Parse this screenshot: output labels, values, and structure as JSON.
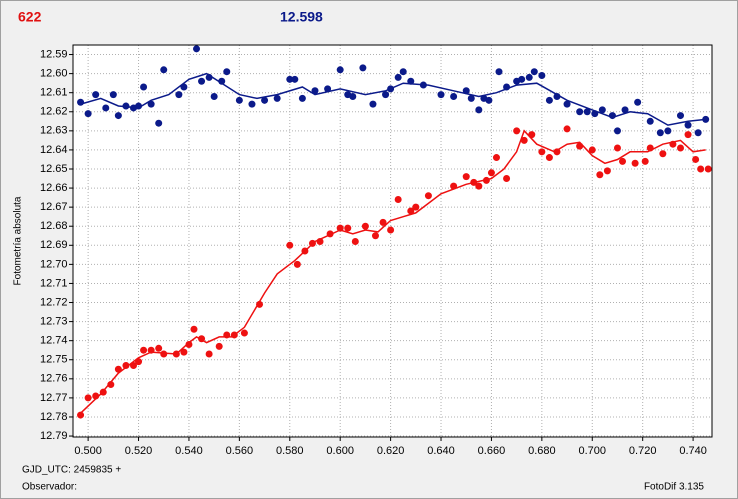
{
  "chart_data": {
    "type": "scatter",
    "label_left": "622",
    "label_right": "12.598",
    "ylabel": "Fotometría absoluta",
    "footer": [
      "GJD_UTC: 2459835 +",
      "Observador:",
      "FotoDif 3.135"
    ],
    "y_inverted": true,
    "grid": true,
    "xlim": [
      0.494,
      0.7475
    ],
    "ylim": [
      12.585,
      12.7905
    ],
    "xticks": [
      {
        "value": 0.5,
        "label": "0.500"
      },
      {
        "value": 0.52,
        "label": "0.520"
      },
      {
        "value": 0.54,
        "label": "0.540"
      },
      {
        "value": 0.56,
        "label": "0.560"
      },
      {
        "value": 0.58,
        "label": "0.580"
      },
      {
        "value": 0.6,
        "label": "0.600"
      },
      {
        "value": 0.62,
        "label": "0.620"
      },
      {
        "value": 0.64,
        "label": "0.640"
      },
      {
        "value": 0.66,
        "label": "0.660"
      },
      {
        "value": 0.68,
        "label": "0.680"
      },
      {
        "value": 0.7,
        "label": "0.700"
      },
      {
        "value": 0.72,
        "label": "0.720"
      },
      {
        "value": 0.74,
        "label": "0.740"
      }
    ],
    "yticks": [
      12.59,
      {
        "value": 12.6,
        "label": "12.60"
      },
      12.61,
      12.62,
      12.63,
      12.64,
      12.65,
      12.66,
      12.67,
      12.68,
      12.69,
      {
        "value": 12.7,
        "label": "12.70"
      },
      12.71,
      12.72,
      12.73,
      12.74,
      12.75,
      12.76,
      12.77,
      12.78,
      12.79
    ],
    "series": [
      {
        "style": "markers",
        "color": "#0b1a8a",
        "x": [
          0.497,
          0.5,
          0.503,
          0.507,
          0.51,
          0.512,
          0.515,
          0.518,
          0.52,
          0.522,
          0.525,
          0.528,
          0.53,
          0.536,
          0.538,
          0.543,
          0.545,
          0.548,
          0.55,
          0.553,
          0.555,
          0.56,
          0.565,
          0.57,
          0.575,
          0.58,
          0.582,
          0.585,
          0.59,
          0.595,
          0.6,
          0.603,
          0.605,
          0.609,
          0.613,
          0.618,
          0.62,
          0.623,
          0.625,
          0.628,
          0.633,
          0.64,
          0.645,
          0.65,
          0.652,
          0.655,
          0.657,
          0.659,
          0.663,
          0.666,
          0.67,
          0.672,
          0.675,
          0.677,
          0.68,
          0.683,
          0.686,
          0.69,
          0.695,
          0.698,
          0.701,
          0.704,
          0.708,
          0.71,
          0.713,
          0.718,
          0.723,
          0.727,
          0.73,
          0.735,
          0.738,
          0.742,
          0.745
        ],
        "values": [
          12.615,
          12.621,
          12.611,
          12.618,
          12.611,
          12.622,
          12.617,
          12.618,
          12.617,
          12.607,
          12.616,
          12.626,
          12.598,
          12.611,
          12.607,
          12.587,
          12.604,
          12.602,
          12.612,
          12.604,
          12.599,
          12.614,
          12.616,
          12.614,
          12.613,
          12.603,
          12.603,
          12.613,
          12.609,
          12.608,
          12.598,
          12.611,
          12.612,
          12.597,
          12.616,
          12.611,
          12.608,
          12.602,
          12.599,
          12.604,
          12.606,
          12.611,
          12.612,
          12.609,
          12.613,
          12.619,
          12.613,
          12.614,
          12.599,
          12.607,
          12.604,
          12.603,
          12.602,
          12.599,
          12.601,
          12.614,
          12.612,
          12.616,
          12.62,
          12.62,
          12.621,
          12.619,
          12.622,
          12.63,
          12.619,
          12.615,
          12.625,
          12.631,
          12.63,
          12.622,
          12.627,
          12.631,
          12.624
        ]
      },
      {
        "style": "line",
        "color": "#0b1a8a",
        "x": [
          0.497,
          0.505,
          0.512,
          0.52,
          0.525,
          0.532,
          0.54,
          0.547,
          0.553,
          0.56,
          0.567,
          0.575,
          0.585,
          0.59,
          0.6,
          0.61,
          0.618,
          0.625,
          0.635,
          0.645,
          0.655,
          0.662,
          0.67,
          0.678,
          0.69,
          0.7,
          0.708,
          0.715,
          0.722,
          0.73,
          0.738,
          0.745
        ],
        "values": [
          12.616,
          12.613,
          12.617,
          12.618,
          12.614,
          12.611,
          12.603,
          12.6,
          12.605,
          12.611,
          12.613,
          12.611,
          12.607,
          12.611,
          12.608,
          12.611,
          12.609,
          12.605,
          12.606,
          12.609,
          12.612,
          12.61,
          12.606,
          12.605,
          12.614,
          12.619,
          12.623,
          12.62,
          12.621,
          12.627,
          12.625,
          12.624
        ]
      },
      {
        "style": "markers",
        "color": "#ee1111",
        "x": [
          0.497,
          0.5,
          0.503,
          0.506,
          0.509,
          0.512,
          0.515,
          0.518,
          0.52,
          0.522,
          0.525,
          0.528,
          0.53,
          0.535,
          0.538,
          0.54,
          0.542,
          0.545,
          0.548,
          0.552,
          0.555,
          0.558,
          0.562,
          0.568,
          0.58,
          0.583,
          0.586,
          0.589,
          0.592,
          0.596,
          0.6,
          0.603,
          0.606,
          0.61,
          0.614,
          0.617,
          0.62,
          0.623,
          0.628,
          0.63,
          0.635,
          0.645,
          0.65,
          0.653,
          0.655,
          0.658,
          0.66,
          0.662,
          0.666,
          0.67,
          0.673,
          0.676,
          0.68,
          0.683,
          0.686,
          0.69,
          0.695,
          0.7,
          0.703,
          0.706,
          0.71,
          0.712,
          0.717,
          0.721,
          0.723,
          0.728,
          0.732,
          0.735,
          0.738,
          0.741,
          0.743,
          0.746
        ],
        "values": [
          12.779,
          12.77,
          12.769,
          12.767,
          12.763,
          12.755,
          12.753,
          12.753,
          12.751,
          12.745,
          12.745,
          12.744,
          12.747,
          12.747,
          12.746,
          12.742,
          12.734,
          12.739,
          12.747,
          12.743,
          12.737,
          12.737,
          12.736,
          12.721,
          12.69,
          12.7,
          12.693,
          12.689,
          12.688,
          12.684,
          12.681,
          12.681,
          12.688,
          12.68,
          12.685,
          12.678,
          12.682,
          12.666,
          12.672,
          12.67,
          12.664,
          12.659,
          12.654,
          12.657,
          12.659,
          12.656,
          12.652,
          12.644,
          12.655,
          12.63,
          12.635,
          12.632,
          12.641,
          12.644,
          12.641,
          12.629,
          12.638,
          12.64,
          12.653,
          12.651,
          12.639,
          12.646,
          12.647,
          12.646,
          12.639,
          12.642,
          12.637,
          12.639,
          12.632,
          12.645,
          12.65,
          12.65
        ]
      },
      {
        "style": "line",
        "color": "#ee1111",
        "x": [
          0.497,
          0.505,
          0.512,
          0.52,
          0.525,
          0.535,
          0.54,
          0.543,
          0.547,
          0.552,
          0.557,
          0.562,
          0.57,
          0.575,
          0.582,
          0.59,
          0.595,
          0.6,
          0.605,
          0.61,
          0.615,
          0.62,
          0.625,
          0.63,
          0.64,
          0.65,
          0.66,
          0.665,
          0.67,
          0.673,
          0.678,
          0.685,
          0.69,
          0.695,
          0.7,
          0.705,
          0.71,
          0.715,
          0.722,
          0.728,
          0.735,
          0.74,
          0.745
        ],
        "values": [
          12.778,
          12.768,
          12.757,
          12.749,
          12.746,
          12.747,
          12.741,
          12.738,
          12.741,
          12.738,
          12.738,
          12.733,
          12.715,
          12.705,
          12.698,
          12.688,
          12.685,
          12.682,
          12.684,
          12.682,
          12.683,
          12.677,
          12.675,
          12.673,
          12.663,
          12.658,
          12.655,
          12.65,
          12.641,
          12.63,
          12.637,
          12.641,
          12.637,
          12.636,
          12.643,
          12.647,
          12.645,
          12.641,
          12.641,
          12.637,
          12.635,
          12.641,
          12.64
        ]
      }
    ]
  }
}
